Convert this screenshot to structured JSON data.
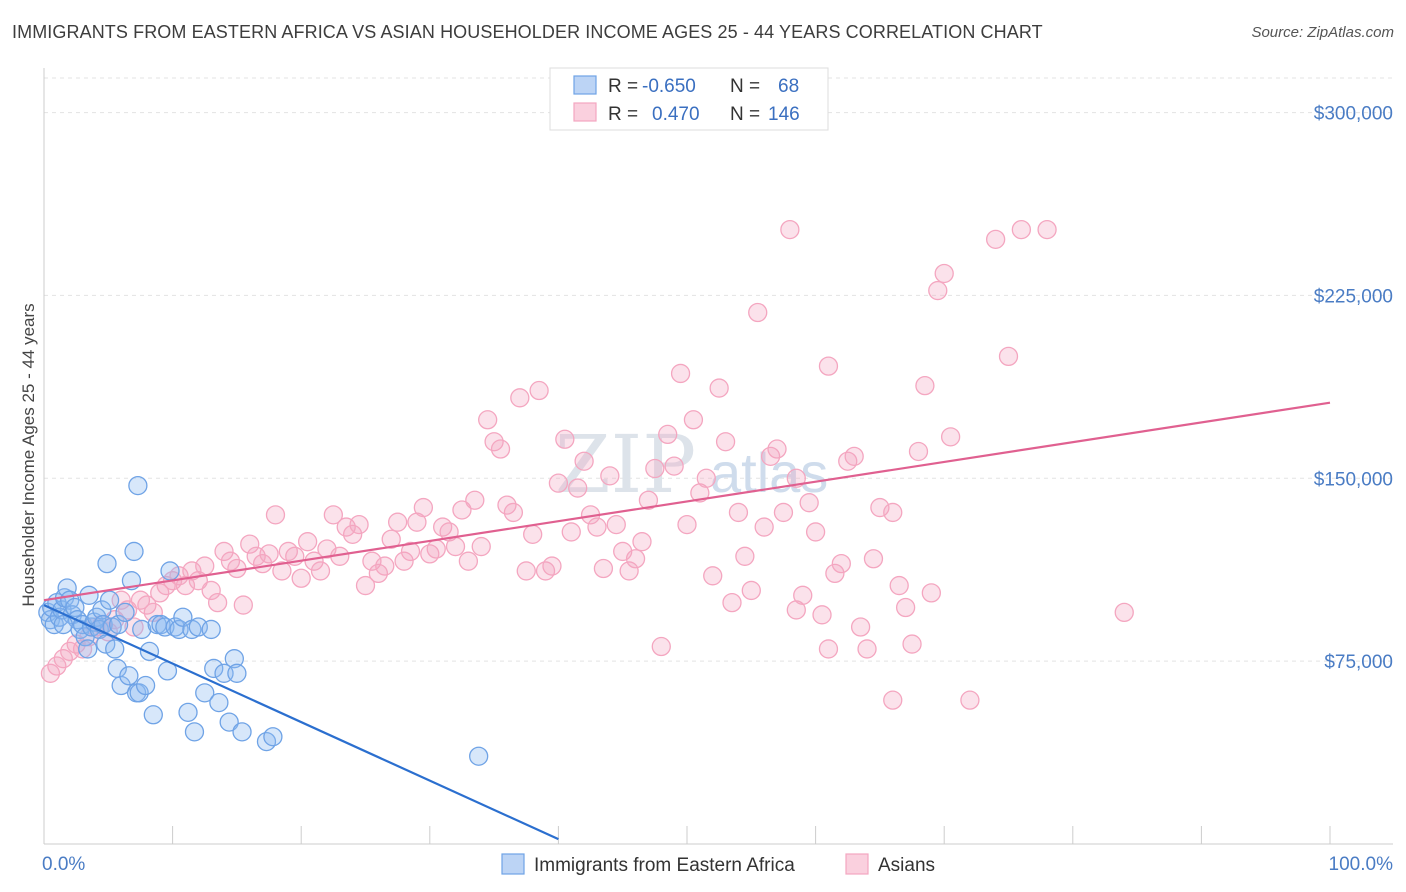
{
  "title": "IMMIGRANTS FROM EASTERN AFRICA VS ASIAN HOUSEHOLDER INCOME AGES 25 - 44 YEARS CORRELATION CHART",
  "source": "Source: ZipAtlas.com",
  "watermark": {
    "zip": "ZIP",
    "atlas": "atlas"
  },
  "chart_data": {
    "type": "scatter",
    "ylabel": "Householder Income Ages 25 - 44 years",
    "xlim": [
      0,
      100
    ],
    "ylim": [
      0,
      315000
    ],
    "x_tick_labels": [
      "0.0%",
      "100.0%"
    ],
    "y_ticks": [
      75000,
      150000,
      225000,
      300000
    ],
    "y_tick_labels": [
      "$75,000",
      "$150,000",
      "$225,000",
      "$300,000"
    ],
    "grid": true,
    "legend_position": "top-center",
    "series": [
      {
        "name": "Immigrants from Eastern Africa",
        "color": "#6fa3e6",
        "line_color": "#2b6fcf",
        "R": "-0.650",
        "N": "68",
        "trend": [
          [
            0,
            98000
          ],
          [
            40,
            2000
          ]
        ],
        "points": [
          [
            0.3,
            95000
          ],
          [
            0.5,
            92000
          ],
          [
            0.6,
            97000
          ],
          [
            0.8,
            90000
          ],
          [
            1.0,
            99000
          ],
          [
            1.2,
            93000
          ],
          [
            1.4,
            96000
          ],
          [
            1.6,
            101000
          ],
          [
            1.8,
            105000
          ],
          [
            2.0,
            100000
          ],
          [
            2.2,
            94000
          ],
          [
            2.4,
            97000
          ],
          [
            2.6,
            92000
          ],
          [
            2.8,
            88000
          ],
          [
            3.0,
            90000
          ],
          [
            3.2,
            85000
          ],
          [
            3.4,
            80000
          ],
          [
            3.5,
            102000
          ],
          [
            3.7,
            89000
          ],
          [
            3.9,
            91000
          ],
          [
            4.1,
            93000
          ],
          [
            4.3,
            88000
          ],
          [
            4.5,
            96000
          ],
          [
            4.6,
            90000
          ],
          [
            4.8,
            82000
          ],
          [
            4.9,
            115000
          ],
          [
            5.1,
            100000
          ],
          [
            5.3,
            89000
          ],
          [
            5.5,
            80000
          ],
          [
            5.7,
            72000
          ],
          [
            5.8,
            90000
          ],
          [
            6.0,
            65000
          ],
          [
            6.3,
            95000
          ],
          [
            6.6,
            69000
          ],
          [
            6.8,
            108000
          ],
          [
            7.0,
            120000
          ],
          [
            7.2,
            62000
          ],
          [
            7.4,
            62000
          ],
          [
            7.6,
            88000
          ],
          [
            7.9,
            65000
          ],
          [
            8.2,
            79000
          ],
          [
            8.5,
            53000
          ],
          [
            8.8,
            90000
          ],
          [
            9.1,
            90000
          ],
          [
            9.4,
            89000
          ],
          [
            9.6,
            71000
          ],
          [
            9.8,
            112000
          ],
          [
            10.2,
            89000
          ],
          [
            10.5,
            88000
          ],
          [
            10.8,
            93000
          ],
          [
            11.2,
            54000
          ],
          [
            11.5,
            88000
          ],
          [
            11.7,
            46000
          ],
          [
            12.0,
            89000
          ],
          [
            12.5,
            62000
          ],
          [
            13.0,
            88000
          ],
          [
            13.2,
            72000
          ],
          [
            13.6,
            58000
          ],
          [
            14.0,
            70000
          ],
          [
            14.4,
            50000
          ],
          [
            14.8,
            76000
          ],
          [
            15.0,
            70000
          ],
          [
            15.4,
            46000
          ],
          [
            17.3,
            42000
          ],
          [
            17.8,
            44000
          ],
          [
            33.8,
            36000
          ],
          [
            1.5,
            90000
          ],
          [
            7.3,
            147000
          ]
        ]
      },
      {
        "name": "Asians",
        "color": "#f4a6c0",
        "line_color": "#e06090",
        "R": "0.470",
        "N": "146",
        "trend": [
          [
            0,
            100000
          ],
          [
            100,
            181000
          ]
        ],
        "points": [
          [
            0.5,
            70000
          ],
          [
            1.0,
            73000
          ],
          [
            1.5,
            76000
          ],
          [
            2.0,
            79000
          ],
          [
            2.5,
            82000
          ],
          [
            3.0,
            80000
          ],
          [
            3.5,
            85000
          ],
          [
            4.0,
            89000
          ],
          [
            4.5,
            90000
          ],
          [
            5.0,
            87000
          ],
          [
            5.5,
            92000
          ],
          [
            6.0,
            100000
          ],
          [
            6.5,
            96000
          ],
          [
            7.0,
            89000
          ],
          [
            7.5,
            100000
          ],
          [
            8.0,
            98000
          ],
          [
            8.5,
            95000
          ],
          [
            9.0,
            103000
          ],
          [
            9.5,
            106000
          ],
          [
            10.0,
            108000
          ],
          [
            10.5,
            110000
          ],
          [
            11.0,
            106000
          ],
          [
            11.5,
            112000
          ],
          [
            12.0,
            108000
          ],
          [
            12.5,
            114000
          ],
          [
            13.0,
            104000
          ],
          [
            13.5,
            99000
          ],
          [
            14.0,
            120000
          ],
          [
            14.5,
            116000
          ],
          [
            15.0,
            113000
          ],
          [
            15.5,
            98000
          ],
          [
            16.0,
            123000
          ],
          [
            16.5,
            118000
          ],
          [
            17.0,
            115000
          ],
          [
            17.5,
            119000
          ],
          [
            18.0,
            135000
          ],
          [
            18.5,
            112000
          ],
          [
            19.0,
            120000
          ],
          [
            19.5,
            118000
          ],
          [
            20.0,
            109000
          ],
          [
            20.5,
            124000
          ],
          [
            21.0,
            116000
          ],
          [
            21.5,
            112000
          ],
          [
            22.0,
            121000
          ],
          [
            22.5,
            135000
          ],
          [
            23.0,
            118000
          ],
          [
            23.5,
            130000
          ],
          [
            24.0,
            127000
          ],
          [
            24.5,
            131000
          ],
          [
            25.0,
            106000
          ],
          [
            25.5,
            116000
          ],
          [
            26.0,
            111000
          ],
          [
            26.5,
            114000
          ],
          [
            27.0,
            125000
          ],
          [
            27.5,
            132000
          ],
          [
            28.0,
            116000
          ],
          [
            28.5,
            120000
          ],
          [
            29.0,
            132000
          ],
          [
            29.5,
            138000
          ],
          [
            30.0,
            119000
          ],
          [
            30.5,
            121000
          ],
          [
            31.0,
            130000
          ],
          [
            31.5,
            128000
          ],
          [
            32.0,
            122000
          ],
          [
            32.5,
            137000
          ],
          [
            33.0,
            116000
          ],
          [
            33.5,
            141000
          ],
          [
            34.0,
            122000
          ],
          [
            34.5,
            174000
          ],
          [
            35.0,
            165000
          ],
          [
            35.5,
            162000
          ],
          [
            36.0,
            139000
          ],
          [
            36.5,
            136000
          ],
          [
            37.0,
            183000
          ],
          [
            37.5,
            112000
          ],
          [
            38.0,
            127000
          ],
          [
            38.5,
            186000
          ],
          [
            39.0,
            112000
          ],
          [
            39.5,
            114000
          ],
          [
            40.0,
            148000
          ],
          [
            40.5,
            166000
          ],
          [
            41.0,
            128000
          ],
          [
            41.5,
            146000
          ],
          [
            42.0,
            157000
          ],
          [
            42.5,
            135000
          ],
          [
            43.0,
            130000
          ],
          [
            43.5,
            113000
          ],
          [
            44.0,
            151000
          ],
          [
            44.5,
            131000
          ],
          [
            45.0,
            120000
          ],
          [
            45.5,
            112000
          ],
          [
            46.0,
            117000
          ],
          [
            46.5,
            124000
          ],
          [
            47.0,
            141000
          ],
          [
            47.5,
            154000
          ],
          [
            48.0,
            81000
          ],
          [
            48.5,
            168000
          ],
          [
            49.0,
            155000
          ],
          [
            49.5,
            193000
          ],
          [
            50.0,
            131000
          ],
          [
            50.5,
            174000
          ],
          [
            51.0,
            144000
          ],
          [
            51.5,
            150000
          ],
          [
            52.0,
            110000
          ],
          [
            52.5,
            187000
          ],
          [
            53.0,
            165000
          ],
          [
            53.5,
            99000
          ],
          [
            54.0,
            136000
          ],
          [
            54.5,
            118000
          ],
          [
            55.0,
            104000
          ],
          [
            55.5,
            218000
          ],
          [
            56.0,
            130000
          ],
          [
            56.5,
            159000
          ],
          [
            57.0,
            162000
          ],
          [
            57.5,
            136000
          ],
          [
            58.0,
            252000
          ],
          [
            58.5,
            96000
          ],
          [
            59.0,
            102000
          ],
          [
            59.5,
            140000
          ],
          [
            60.0,
            128000
          ],
          [
            60.5,
            94000
          ],
          [
            61.0,
            80000
          ],
          [
            61.5,
            111000
          ],
          [
            62.0,
            115000
          ],
          [
            62.5,
            157000
          ],
          [
            63.0,
            159000
          ],
          [
            63.5,
            89000
          ],
          [
            64.0,
            80000
          ],
          [
            64.5,
            117000
          ],
          [
            65.0,
            138000
          ],
          [
            66.0,
            136000
          ],
          [
            66.5,
            106000
          ],
          [
            67.0,
            97000
          ],
          [
            67.5,
            82000
          ],
          [
            68.0,
            161000
          ],
          [
            68.5,
            188000
          ],
          [
            69.0,
            103000
          ],
          [
            69.5,
            227000
          ],
          [
            70.0,
            234000
          ],
          [
            70.5,
            167000
          ],
          [
            72.0,
            59000
          ],
          [
            74.0,
            248000
          ],
          [
            75.0,
            200000
          ],
          [
            76.0,
            252000
          ],
          [
            78.0,
            252000
          ],
          [
            84.0,
            95000
          ],
          [
            66.0,
            59000
          ],
          [
            61.0,
            196000
          ],
          [
            58.5,
            150000
          ]
        ]
      }
    ]
  }
}
